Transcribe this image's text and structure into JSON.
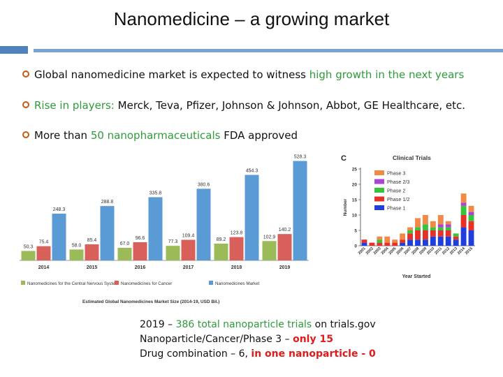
{
  "slide": {
    "title": "Nanomedicine – a growing market",
    "bullets": [
      {
        "pre": "Global nanomedicine market is expected to witness ",
        "hl": "high growth in the next years",
        "post": ""
      },
      {
        "pre": "",
        "hl": "Rise in players:",
        "post": " Merck, Teva, Pfizer, Johnson & Johnson, Abbot, GE Healthcare, etc."
      },
      {
        "pre": "More than ",
        "hl": "50 nanopharmaceuticals",
        "post": " FDA approved"
      }
    ],
    "notes": [
      {
        "a": "2019 – ",
        "b": "386 total nanoparticle trials",
        "c": " on trials.gov",
        "b_color": "green",
        "d": ""
      },
      {
        "a": "Nanoparticle/Cancer/Phase 3 – ",
        "b": "only 15",
        "c": "",
        "b_color": "red",
        "d": ""
      },
      {
        "a": "Drug combination – 6, ",
        "b": "in one nanoparticle - 0",
        "c": "",
        "b_color": "red",
        "d": ""
      }
    ]
  },
  "chart_data": [
    {
      "type": "bar",
      "title": "Estimated Global Nanomedicines Market Size (2014-19, USD Bil.)",
      "categories": [
        "2014",
        "2015",
        "2016",
        "2017",
        "2018",
        "2019"
      ],
      "series": [
        {
          "name": "Nanomedicines for the Central Nervous System",
          "color": "#9bbb59",
          "values": [
            50.3,
            58.0,
            67.0,
            77.3,
            89.2,
            102.9
          ]
        },
        {
          "name": "Nanomedicines for Cancer",
          "color": "#d9605a",
          "values": [
            75.4,
            85.4,
            96.6,
            109.4,
            123.8,
            140.2
          ]
        },
        {
          "name": "Nanomedicines Market",
          "color": "#5b9bd5",
          "values": [
            248.3,
            288.8,
            335.8,
            380.6,
            454.3,
            528.3
          ]
        }
      ],
      "data_labels": [
        [
          "50.3",
          "58.0",
          "67.0",
          "77.3",
          "89.2",
          "102.9"
        ],
        [
          "75.4",
          "85.4",
          "96.6",
          "109.4",
          "123.8",
          "140.2"
        ],
        [
          "248.3",
          "288.8",
          "335.8",
          "380.6",
          "454.3",
          "528.3"
        ]
      ],
      "ylim": [
        0,
        560
      ],
      "legend": "bottom",
      "grid": false
    },
    {
      "type": "bar",
      "stacked": true,
      "panel_label": "C",
      "title": "Clinical Trials",
      "xlabel": "Year Started",
      "ylabel": "Number",
      "categories": [
        "2001",
        "2002",
        "2003",
        "2004",
        "2005",
        "2006",
        "2007",
        "2008",
        "2009",
        "2010",
        "2011",
        "2012",
        "2013",
        "2014",
        "2015"
      ],
      "series": [
        {
          "name": "Phase 1",
          "color": "#1f3fdd",
          "values": [
            1,
            0,
            0,
            0,
            0,
            1,
            2,
            2,
            2,
            3,
            3,
            3,
            2,
            6,
            5
          ]
        },
        {
          "name": "Phase 1/2",
          "color": "#e8302a",
          "values": [
            1,
            1,
            1,
            1,
            1,
            1,
            2,
            3,
            3,
            2,
            2,
            2,
            1,
            4,
            3
          ]
        },
        {
          "name": "Phase 2",
          "color": "#37c43a",
          "values": [
            0,
            0,
            1,
            0,
            0,
            0,
            1,
            1,
            2,
            1,
            1,
            1,
            1,
            3,
            2
          ]
        },
        {
          "name": "Phase 2/3",
          "color": "#a944d6",
          "values": [
            0,
            0,
            0,
            0,
            0,
            0,
            0,
            0,
            0,
            0,
            1,
            1,
            0,
            1,
            1
          ]
        },
        {
          "name": "Phase 3",
          "color": "#f08a47",
          "values": [
            0,
            0,
            1,
            2,
            1,
            2,
            1,
            3,
            3,
            2,
            3,
            1,
            0,
            3,
            2
          ]
        }
      ],
      "yticks": [
        0,
        5,
        10,
        15,
        20,
        25
      ],
      "ylim": [
        0,
        25
      ],
      "legend": "top-left"
    }
  ]
}
